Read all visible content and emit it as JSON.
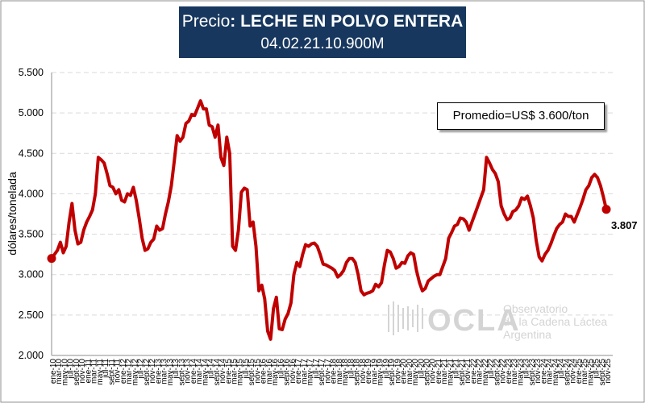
{
  "title": {
    "prefix": "Precio",
    "product": "LECHE EN POLVO ENTERA",
    "code": "04.02.21.10.900M"
  },
  "average_box": "Promedio=US$ 3.600/ton",
  "watermark": {
    "logo_text": "OCLA",
    "line1": "Observatorio",
    "line2": "de la Cadena Láctea",
    "line3": "Argentina"
  },
  "colors": {
    "line": "#c00000",
    "title_bg": "#17375e",
    "grid": "#d9d9d9"
  },
  "chart_data": {
    "type": "line",
    "ylabel": "dólares/tonelada",
    "ylim": [
      2000,
      5500
    ],
    "yticks": [
      "2.000",
      "2.500",
      "3.000",
      "3.500",
      "4.000",
      "4.500",
      "5.000",
      "5.500"
    ],
    "ytick_values": [
      2000,
      2500,
      3000,
      3500,
      4000,
      4500,
      5000,
      5500
    ],
    "grid": "horizontal dashed",
    "last_value_label": "3.807",
    "x_tick_labels": [
      "ene-10",
      "mar-10",
      "may-10",
      "jul-10",
      "sept-10",
      "nov-10",
      "ene-11",
      "mar-11",
      "may-11",
      "jul-11",
      "sept-11",
      "nov-11",
      "ene-12",
      "mar-12",
      "may-12",
      "jul-12",
      "sept-12",
      "nov-12",
      "ene-13",
      "mar-13",
      "may-13",
      "jul-13",
      "sept-13",
      "nov-13",
      "ene-14",
      "mar-14",
      "may-14",
      "jul-14",
      "sept-14",
      "nov-14",
      "ene-15",
      "mar-15",
      "may-15",
      "jul-15",
      "sept-15",
      "nov-15",
      "ene-16",
      "mar-16",
      "may-16",
      "jul-16",
      "sept-16",
      "nov-16",
      "ene-17",
      "mar-17",
      "may-17",
      "jul-17",
      "sept-17",
      "nov-17",
      "ene-18",
      "mar-18",
      "may-18",
      "jul-18",
      "sept-18",
      "nov-18",
      "ene-19",
      "mar-19",
      "may-19",
      "jul-19",
      "sept-19",
      "nov-19",
      "ene-20",
      "mar-20",
      "may-20",
      "jul-20",
      "sept-20",
      "nov-20",
      "ene-21",
      "mar-21",
      "may-21",
      "jul-21",
      "sept-21",
      "nov-21",
      "ene-22",
      "mar-22",
      "may-22",
      "jul-22",
      "sept-22",
      "nov-22",
      "ene-23",
      "mar-23",
      "may-23",
      "jul-23",
      "sept-23",
      "nov-23",
      "ene-24",
      "mar-24",
      "may-24",
      "jul-24",
      "sept-24",
      "nov-24",
      "ene-25",
      "mar-25",
      "may-25",
      "jul-25",
      "sept-25",
      "nov-25"
    ],
    "series": [
      {
        "values": [
          3200,
          3250,
          3300,
          3400,
          3270,
          3350,
          3650,
          3880,
          3550,
          3380,
          3400,
          3550,
          3650,
          3720,
          3800,
          4000,
          4450,
          4420,
          4380,
          4250,
          4100,
          4080,
          4000,
          4050,
          3920,
          3900,
          4000,
          3980,
          4080,
          3920,
          3700,
          3450,
          3300,
          3320,
          3400,
          3440,
          3600,
          3550,
          3570,
          3750,
          3900,
          4100,
          4400,
          4720,
          4650,
          4700,
          4870,
          4900,
          4980,
          4970,
          5060,
          5150,
          5050,
          5050,
          4850,
          4830,
          4700,
          4850,
          4450,
          4350,
          4700,
          4500,
          3350,
          3300,
          3550,
          4020,
          4070,
          4050,
          3600,
          3650,
          3350,
          2800,
          2870,
          2700,
          2300,
          2200,
          2580,
          2720,
          2330,
          2320,
          2450,
          2520,
          2650,
          3000,
          3150,
          3100,
          3250,
          3370,
          3350,
          3380,
          3390,
          3350,
          3250,
          3130,
          3120,
          3100,
          3080,
          3050,
          2970,
          3000,
          3050,
          3150,
          3200,
          3200,
          3150,
          3000,
          2800,
          2750,
          2770,
          2780,
          2800,
          2880,
          2850,
          2900,
          3120,
          3300,
          3280,
          3200,
          3080,
          3100,
          3150,
          3140,
          3230,
          3270,
          3250,
          3050,
          2900,
          2800,
          2830,
          2920,
          2950,
          2980,
          3000,
          3000,
          3100,
          3200,
          3450,
          3520,
          3600,
          3620,
          3700,
          3690,
          3650,
          3550,
          3650,
          3750,
          3850,
          3950,
          4050,
          4450,
          4380,
          4300,
          4250,
          4150,
          3850,
          3750,
          3680,
          3700,
          3780,
          3800,
          3850,
          3950,
          3930,
          3970,
          3850,
          3700,
          3420,
          3220,
          3170,
          3250,
          3300,
          3380,
          3480,
          3570,
          3620,
          3650,
          3750,
          3720,
          3720,
          3650,
          3740,
          3830,
          3930,
          4050,
          4100,
          4200,
          4240,
          4200,
          4100,
          3960,
          3807
        ]
      }
    ]
  }
}
